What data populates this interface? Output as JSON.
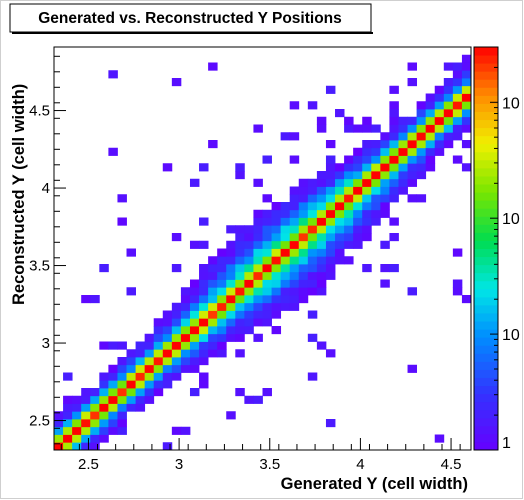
{
  "chart_data": {
    "type": "heatmap",
    "title": "Generated vs. Reconstructed Y Positions",
    "xlabel": "Generated Y (cell width)",
    "ylabel": "Reconstructed Y (cell width)",
    "xlim": [
      2.31,
      4.61
    ],
    "ylim": [
      2.31,
      4.91
    ],
    "x_ticks": [
      "2.5",
      "3",
      "3.5",
      "4",
      "4.5"
    ],
    "y_ticks": [
      "2.5",
      "3",
      "3.5",
      "4",
      "4.5"
    ],
    "z_scale": "log",
    "z_range": [
      1,
      3000
    ],
    "colorbar_ticks": [
      "1",
      "10",
      "10",
      "10"
    ],
    "bin_width": 0.05,
    "description_note": "",
    "diagonal_peak_counts": 3000,
    "grid": false
  }
}
